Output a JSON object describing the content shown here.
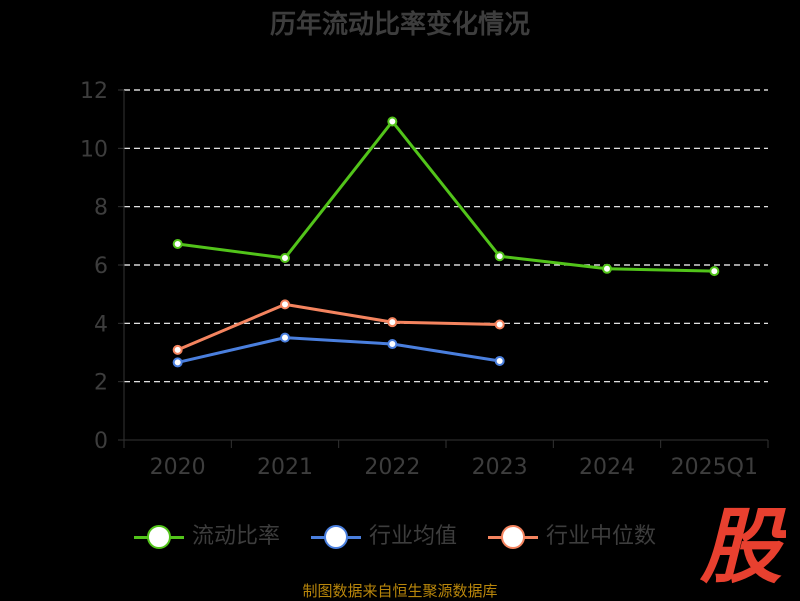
{
  "chart_data": {
    "type": "line",
    "title": "历年流动比率变化情况",
    "categories": [
      "2020",
      "2021",
      "2022",
      "2023",
      "2024",
      "2025Q1"
    ],
    "yticks": [
      "0",
      "2",
      "4",
      "6",
      "8",
      "10",
      "12"
    ],
    "ylim": [
      0,
      12
    ],
    "grid": true,
    "legend_position": "bottom",
    "series": [
      {
        "name": "流动比率",
        "color": "#52c41a",
        "values": [
          6.72,
          6.24,
          10.92,
          6.3,
          5.87,
          5.79
        ]
      },
      {
        "name": "行业均值",
        "color": "#4a7fde",
        "values": [
          2.66,
          3.51,
          3.29,
          2.71,
          null,
          null
        ]
      },
      {
        "name": "行业中位数",
        "color": "#f4845f",
        "values": [
          3.09,
          4.65,
          4.04,
          3.96,
          null,
          null
        ]
      }
    ]
  },
  "footer": {
    "source": "制图数据来自恒生聚源数据库",
    "logo_text": "股"
  }
}
